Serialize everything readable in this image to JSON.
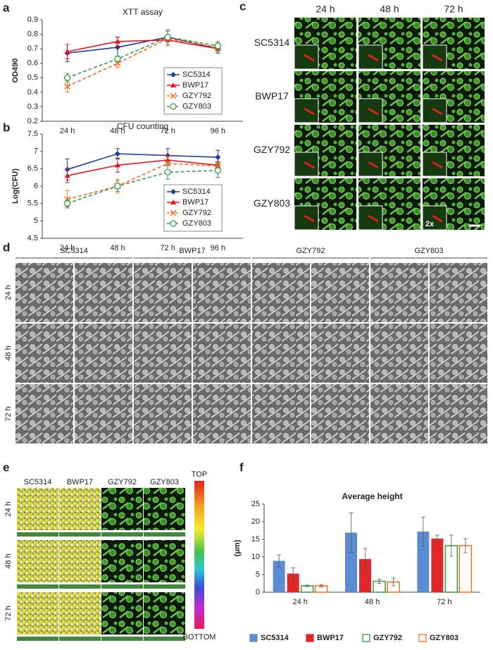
{
  "chart_data": [
    {
      "type": "line",
      "title": "XTT assay",
      "y_label": "OD490",
      "categories": [
        "24 h",
        "48 h",
        "72 h",
        "96 h"
      ],
      "ylim": [
        0.2,
        0.9
      ],
      "yticks": [
        0.2,
        0.3,
        0.4,
        0.5,
        0.6,
        0.7,
        0.8,
        0.9
      ],
      "grid": false,
      "legend": "lower right",
      "series": [
        {
          "name": "SC5314",
          "color": "#1f3c99",
          "marker": "diamond",
          "dashed": false,
          "values": [
            0.67,
            0.71,
            0.78,
            0.7
          ],
          "errors": [
            0.06,
            0.07,
            0.05,
            0.03
          ]
        },
        {
          "name": "BWP17",
          "color": "#e8141c",
          "marker": "triangle",
          "dashed": false,
          "values": [
            0.68,
            0.75,
            0.76,
            0.7
          ],
          "errors": [
            0.05,
            0.03,
            0.03,
            0.02
          ]
        },
        {
          "name": "GZY792",
          "color": "#f07020",
          "marker": "x",
          "dashed": true,
          "values": [
            0.44,
            0.6,
            0.77,
            0.71
          ],
          "errors": [
            0.04,
            0.03,
            0.05,
            0.03
          ]
        },
        {
          "name": "GZY803",
          "color": "#3a9a50",
          "marker": "circle",
          "dashed": true,
          "values": [
            0.5,
            0.63,
            0.78,
            0.72
          ],
          "errors": [
            0.03,
            0.02,
            0.05,
            0.03
          ]
        }
      ]
    },
    {
      "type": "line",
      "title": "CFU counting",
      "y_label": "Log(CFU)",
      "categories": [
        "24 h",
        "48 h",
        "72 h",
        "96 h"
      ],
      "ylim": [
        4.5,
        7.5
      ],
      "yticks": [
        4.5,
        5,
        5.5,
        6,
        6.5,
        7,
        7.5
      ],
      "grid": false,
      "legend": "lower right",
      "series": [
        {
          "name": "SC5314",
          "color": "#1f3c99",
          "marker": "diamond",
          "dashed": false,
          "values": [
            6.48,
            6.93,
            6.88,
            6.83
          ],
          "errors": [
            0.3,
            0.15,
            0.2,
            0.2
          ]
        },
        {
          "name": "BWP17",
          "color": "#e8141c",
          "marker": "triangle",
          "dashed": false,
          "values": [
            6.3,
            6.6,
            6.75,
            6.6
          ],
          "errors": [
            0.2,
            0.2,
            0.15,
            0.1
          ]
        },
        {
          "name": "GZY792",
          "color": "#f07020",
          "marker": "x",
          "dashed": true,
          "values": [
            5.62,
            6.0,
            6.65,
            6.58
          ],
          "errors": [
            0.25,
            0.2,
            0.2,
            0.1
          ]
        },
        {
          "name": "GZY803",
          "color": "#3a9a50",
          "marker": "circle",
          "dashed": true,
          "values": [
            5.5,
            6.0,
            6.4,
            6.45
          ],
          "errors": [
            0.1,
            0.15,
            0.2,
            0.2
          ]
        }
      ]
    },
    {
      "type": "bar",
      "title": "Average height",
      "y_label": "(μm)",
      "categories": [
        "24 h",
        "48 h",
        "72 h"
      ],
      "ylim": [
        0,
        25
      ],
      "yticks": [
        0,
        5,
        10,
        15,
        20,
        25
      ],
      "grid": false,
      "legend": "bottom",
      "series": [
        {
          "name": "SC5314",
          "color": "#5b8bd0",
          "filled": true,
          "values": [
            8.9,
            16.9,
            17.2
          ],
          "errors": [
            1.7,
            5.6,
            4.1
          ]
        },
        {
          "name": "BWP17",
          "color": "#e02828",
          "filled": true,
          "values": [
            5.3,
            9.4,
            15.2
          ],
          "errors": [
            1.6,
            3.0,
            1.0
          ]
        },
        {
          "name": "GZY792",
          "color": "#2e9e44",
          "filled": false,
          "values": [
            1.8,
            3.1,
            13.2
          ],
          "errors": [
            0.2,
            0.6,
            3.0
          ]
        },
        {
          "name": "GZY803",
          "color": "#f07020",
          "filled": false,
          "values": [
            1.8,
            2.9,
            13.2
          ],
          "errors": [
            0.3,
            1.1,
            2.0
          ]
        }
      ]
    }
  ],
  "panels": {
    "letters": [
      "a",
      "b",
      "c",
      "d",
      "e",
      "f"
    ],
    "c": {
      "columns": [
        "24 h",
        "48 h",
        "72 h"
      ],
      "rows": [
        "SC5314",
        "BWP17",
        "GZY792",
        "GZY803"
      ],
      "zoom": "2x"
    },
    "d": {
      "groups": [
        "SC5314",
        "BWP17",
        "GZY792",
        "GZY803"
      ],
      "rows": [
        "24 h",
        "48 h",
        "72 h"
      ]
    },
    "e": {
      "columns": [
        "SC5314",
        "BWP17",
        "GZY792",
        "GZY803"
      ],
      "rows": [
        "24 h",
        "48 h",
        "72 h"
      ],
      "scale_top": "TOP",
      "scale_bottom": "BOTTOM"
    }
  }
}
